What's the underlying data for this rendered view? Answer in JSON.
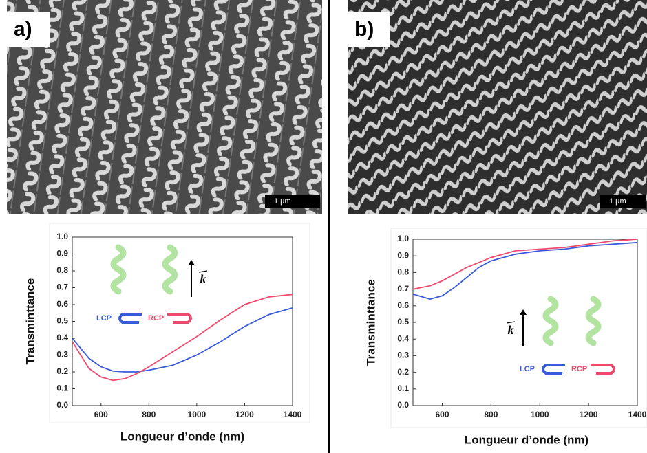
{
  "panels": [
    {
      "label": "a)",
      "scale_bar": "1 µm"
    },
    {
      "label": "b)",
      "scale_bar": "1 µm"
    }
  ],
  "chart_data": [
    {
      "type": "line",
      "x_label": "Longueur d’onde (nm)",
      "y_label": "Transminttance",
      "vector_label": "k",
      "x": [
        480,
        550,
        600,
        650,
        700,
        750,
        800,
        900,
        1000,
        1100,
        1200,
        1300,
        1400
      ],
      "series": [
        {
          "name": "LCP",
          "color": "#3a5bd9",
          "values": [
            0.4,
            0.28,
            0.23,
            0.205,
            0.2,
            0.2,
            0.21,
            0.24,
            0.3,
            0.38,
            0.47,
            0.54,
            0.58
          ]
        },
        {
          "name": "RCP",
          "color": "#ee4a6e",
          "values": [
            0.38,
            0.22,
            0.17,
            0.15,
            0.16,
            0.19,
            0.23,
            0.32,
            0.41,
            0.51,
            0.6,
            0.645,
            0.66
          ]
        }
      ],
      "xlim": [
        480,
        1400
      ],
      "xticks": [
        600,
        800,
        1000,
        1200,
        1400
      ],
      "ylim": [
        0,
        1
      ],
      "yticks": [
        {
          "value": 0,
          "label": "0.0"
        },
        0.1,
        0.2,
        0.3,
        0.4,
        0.5,
        0.6,
        0.7,
        0.8,
        0.9,
        {
          "value": 1,
          "label": "1.0"
        }
      ]
    },
    {
      "type": "line",
      "x_label": "Longueur d’onde (nm)",
      "y_label": "Transminttance",
      "vector_label": "k",
      "x": [
        480,
        550,
        600,
        650,
        700,
        750,
        800,
        900,
        1000,
        1100,
        1200,
        1300,
        1400
      ],
      "series": [
        {
          "name": "LCP",
          "color": "#3a5bd9",
          "values": [
            0.67,
            0.64,
            0.66,
            0.71,
            0.77,
            0.83,
            0.87,
            0.91,
            0.93,
            0.94,
            0.96,
            0.97,
            0.98
          ]
        },
        {
          "name": "RCP",
          "color": "#ee4a6e",
          "values": [
            0.7,
            0.72,
            0.75,
            0.79,
            0.83,
            0.86,
            0.89,
            0.93,
            0.94,
            0.95,
            0.97,
            0.99,
            1.0
          ]
        }
      ],
      "xlim": [
        480,
        1400
      ],
      "xticks": [
        600,
        800,
        1000,
        1200,
        1400
      ],
      "ylim": [
        0,
        1
      ],
      "yticks": [
        {
          "value": 0,
          "label": "0.0"
        },
        0.1,
        0.2,
        0.3,
        0.4,
        0.5,
        0.6,
        0.7,
        0.8,
        0.9,
        {
          "value": 1,
          "label": "1.0"
        }
      ]
    }
  ]
}
